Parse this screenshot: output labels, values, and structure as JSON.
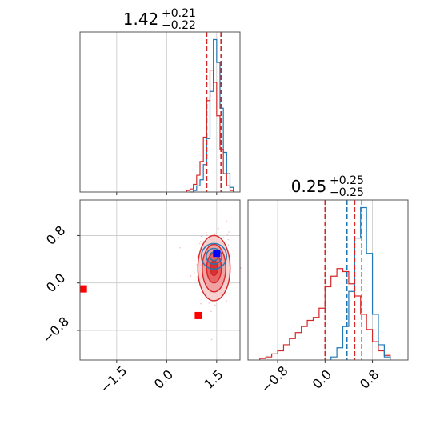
{
  "chart_data": [
    {
      "panel": "marginal-x",
      "type": "histogram",
      "title": {
        "value": "1.42",
        "plus": "+0.21",
        "minus": "−0.22"
      },
      "xlim": [
        -2.6,
        2.2
      ],
      "x_ticks": [
        -1.5,
        0.0,
        1.5
      ],
      "grid": true,
      "series": [
        {
          "color": "#1f77b4",
          "bin_edges": [
            0.7,
            0.8,
            0.9,
            1.0,
            1.1,
            1.2,
            1.3,
            1.4,
            1.5,
            1.6,
            1.7,
            1.8,
            1.9,
            2.0
          ],
          "counts": [
            0,
            1,
            4,
            8,
            18,
            35,
            66,
            100,
            85,
            55,
            26,
            12,
            3
          ]
        },
        {
          "color": "#d62728",
          "bin_edges": [
            0.6,
            0.7,
            0.8,
            0.9,
            1.0,
            1.1,
            1.2,
            1.3,
            1.4,
            1.5,
            1.6,
            1.7,
            1.8,
            1.9,
            2.0
          ],
          "counts": [
            1,
            2,
            5,
            11,
            20,
            36,
            60,
            80,
            72,
            50,
            28,
            12,
            4,
            1
          ]
        }
      ],
      "vlines": [
        {
          "x": 1.2,
          "color": "#1f77b4"
        },
        {
          "x": 1.63,
          "color": "#1f77b4"
        },
        {
          "x": 1.2,
          "color": "#d62728"
        },
        {
          "x": 1.63,
          "color": "#d62728"
        }
      ]
    },
    {
      "panel": "joint",
      "type": "contour",
      "xlim": [
        -2.6,
        2.2
      ],
      "ylim": [
        -1.3,
        1.4
      ],
      "x_ticks": [
        -1.5,
        0.0,
        1.5
      ],
      "y_ticks": [
        0.8,
        0.0,
        -0.8
      ],
      "grid": true,
      "series": [
        {
          "color": "#d62728",
          "center": [
            1.42,
            0.25
          ],
          "sigma": [
            0.22,
            0.25
          ]
        },
        {
          "color": "#1f77b4",
          "center": [
            1.42,
            0.45
          ],
          "sigma": [
            0.21,
            0.12
          ]
        }
      ],
      "markers": [
        {
          "x": 1.5,
          "y": 0.5,
          "color": "#0000ff"
        },
        {
          "x": -2.5,
          "y": -0.1,
          "color": "#ff0000"
        },
        {
          "x": 0.95,
          "y": -0.55,
          "color": "#ff0000"
        }
      ]
    },
    {
      "panel": "marginal-y",
      "type": "histogram",
      "title": {
        "value": "0.25",
        "plus": "+0.25",
        "minus": "−0.25"
      },
      "xlim": [
        -1.3,
        1.4
      ],
      "x_ticks": [
        -0.8,
        0.0,
        0.8
      ],
      "grid": true,
      "series": [
        {
          "color": "#d62728",
          "bin_edges": [
            -1.1,
            -1.0,
            -0.9,
            -0.8,
            -0.7,
            -0.6,
            -0.5,
            -0.4,
            -0.3,
            -0.2,
            -0.1,
            0.0,
            0.1,
            0.2,
            0.3,
            0.4,
            0.5,
            0.6,
            0.7,
            0.8,
            0.9,
            1.0,
            1.1
          ],
          "counts": [
            1,
            2,
            4,
            6,
            10,
            14,
            18,
            22,
            26,
            28,
            34,
            48,
            55,
            60,
            58,
            50,
            42,
            30,
            20,
            12,
            6,
            3
          ]
        },
        {
          "color": "#1f77b4",
          "bin_edges": [
            0.1,
            0.2,
            0.3,
            0.4,
            0.5,
            0.6,
            0.7,
            0.8,
            0.9,
            1.0,
            1.1
          ],
          "counts": [
            2,
            8,
            22,
            45,
            80,
            100,
            70,
            30,
            10,
            2
          ]
        }
      ],
      "vlines": [
        {
          "x": 0.0,
          "color": "#d62728"
        },
        {
          "x": 0.5,
          "color": "#d62728"
        },
        {
          "x": 0.37,
          "color": "#1f77b4"
        },
        {
          "x": 0.62,
          "color": "#1f77b4"
        }
      ]
    }
  ]
}
